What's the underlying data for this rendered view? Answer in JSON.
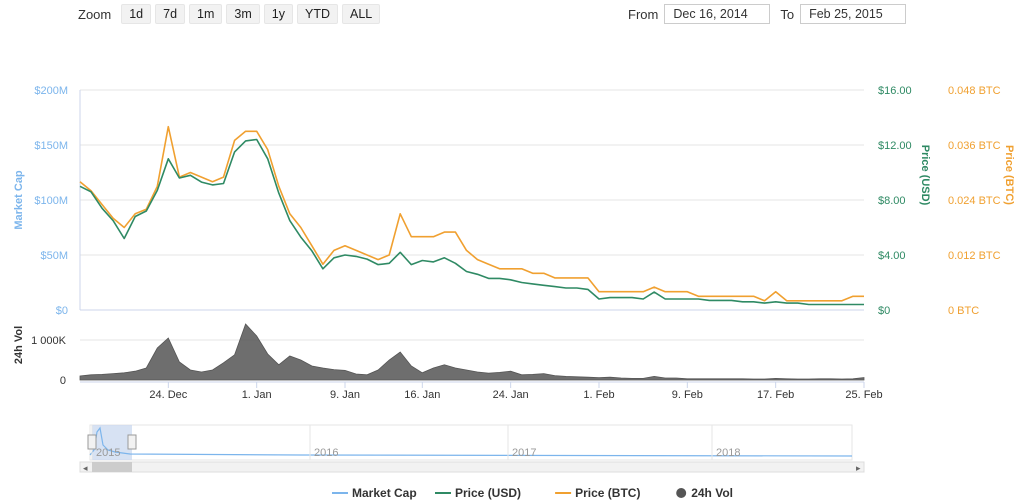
{
  "zoom": {
    "label": "Zoom",
    "buttons": [
      "1d",
      "7d",
      "1m",
      "3m",
      "1y",
      "YTD",
      "ALL"
    ]
  },
  "range": {
    "from_label": "From",
    "from_value": "Dec 16, 2014",
    "to_label": "To",
    "to_value": "Feb 25, 2015"
  },
  "colors": {
    "market_cap": "#7cb5ec",
    "price_usd": "#2f8a64",
    "price_btc": "#f0a030",
    "volume": "#555555",
    "navigator_fill": "#c6d6ee"
  },
  "chart_data": {
    "type": "line",
    "x_type": "date",
    "x_range": [
      "2014-12-16",
      "2015-02-25"
    ],
    "x_ticks": [
      "24. Dec",
      "1. Jan",
      "9. Jan",
      "16. Jan",
      "24. Jan",
      "1. Feb",
      "9. Feb",
      "17. Feb",
      "25. Feb"
    ],
    "x_tick_dates": [
      "2014-12-24",
      "2015-01-01",
      "2015-01-09",
      "2015-01-16",
      "2015-01-24",
      "2015-02-01",
      "2015-02-09",
      "2015-02-17",
      "2015-02-25"
    ],
    "axes": {
      "market_cap": {
        "label": "Market Cap",
        "ticks": [
          "$0",
          "$50M",
          "$100M",
          "$150M",
          "$200M"
        ],
        "range": [
          0,
          200000000
        ]
      },
      "price_usd": {
        "label": "Price (USD)",
        "ticks": [
          "$0",
          "$4.00",
          "$8.00",
          "$12.00",
          "$16.00"
        ],
        "range": [
          0,
          16
        ]
      },
      "price_btc": {
        "label": "Price (BTC)",
        "ticks": [
          "0 BTC",
          "0.012 BTC",
          "0.024 BTC",
          "0.036 BTC",
          "0.048 BTC"
        ],
        "range": [
          0,
          0.048
        ]
      },
      "volume": {
        "label": "24h Vol",
        "ticks": [
          "0",
          "1 000K"
        ],
        "range": [
          0,
          1500000
        ]
      }
    },
    "series": [
      {
        "name": "Price (USD)",
        "axis": "price_usd",
        "color": "#2f8a64",
        "points": [
          [
            "2014-12-16",
            9.0
          ],
          [
            "2014-12-17",
            8.6
          ],
          [
            "2014-12-18",
            7.4
          ],
          [
            "2014-12-19",
            6.5
          ],
          [
            "2014-12-20",
            5.2
          ],
          [
            "2014-12-21",
            6.8
          ],
          [
            "2014-12-22",
            7.2
          ],
          [
            "2014-12-23",
            8.7
          ],
          [
            "2014-12-24",
            11.0
          ],
          [
            "2014-12-25",
            9.6
          ],
          [
            "2014-12-26",
            9.8
          ],
          [
            "2014-12-27",
            9.3
          ],
          [
            "2014-12-28",
            9.1
          ],
          [
            "2014-12-29",
            9.2
          ],
          [
            "2014-12-30",
            11.5
          ],
          [
            "2014-12-31",
            12.3
          ],
          [
            "2015-01-01",
            12.4
          ],
          [
            "2015-01-02",
            11.0
          ],
          [
            "2015-01-03",
            8.5
          ],
          [
            "2015-01-04",
            6.5
          ],
          [
            "2015-01-05",
            5.3
          ],
          [
            "2015-01-06",
            4.3
          ],
          [
            "2015-01-07",
            3.0
          ],
          [
            "2015-01-08",
            3.8
          ],
          [
            "2015-01-09",
            4.0
          ],
          [
            "2015-01-10",
            3.9
          ],
          [
            "2015-01-11",
            3.7
          ],
          [
            "2015-01-12",
            3.3
          ],
          [
            "2015-01-13",
            3.4
          ],
          [
            "2015-01-14",
            4.2
          ],
          [
            "2015-01-15",
            3.3
          ],
          [
            "2015-01-16",
            3.6
          ],
          [
            "2015-01-17",
            3.5
          ],
          [
            "2015-01-18",
            3.8
          ],
          [
            "2015-01-19",
            3.4
          ],
          [
            "2015-01-20",
            2.8
          ],
          [
            "2015-01-21",
            2.6
          ],
          [
            "2015-01-22",
            2.3
          ],
          [
            "2015-01-23",
            2.3
          ],
          [
            "2015-01-24",
            2.2
          ],
          [
            "2015-01-25",
            2.0
          ],
          [
            "2015-01-26",
            1.9
          ],
          [
            "2015-01-27",
            1.8
          ],
          [
            "2015-01-28",
            1.7
          ],
          [
            "2015-01-29",
            1.6
          ],
          [
            "2015-01-30",
            1.6
          ],
          [
            "2015-01-31",
            1.5
          ],
          [
            "2015-02-01",
            0.8
          ],
          [
            "2015-02-02",
            0.9
          ],
          [
            "2015-02-03",
            0.9
          ],
          [
            "2015-02-04",
            0.9
          ],
          [
            "2015-02-05",
            0.8
          ],
          [
            "2015-02-06",
            1.3
          ],
          [
            "2015-02-07",
            0.8
          ],
          [
            "2015-02-08",
            0.8
          ],
          [
            "2015-02-09",
            0.8
          ],
          [
            "2015-02-10",
            0.8
          ],
          [
            "2015-02-11",
            0.7
          ],
          [
            "2015-02-12",
            0.7
          ],
          [
            "2015-02-13",
            0.7
          ],
          [
            "2015-02-14",
            0.6
          ],
          [
            "2015-02-15",
            0.6
          ],
          [
            "2015-02-16",
            0.5
          ],
          [
            "2015-02-17",
            0.6
          ],
          [
            "2015-02-18",
            0.5
          ],
          [
            "2015-02-19",
            0.5
          ],
          [
            "2015-02-20",
            0.4
          ],
          [
            "2015-02-21",
            0.4
          ],
          [
            "2015-02-22",
            0.4
          ],
          [
            "2015-02-23",
            0.4
          ],
          [
            "2015-02-24",
            0.4
          ],
          [
            "2015-02-25",
            0.4
          ]
        ]
      },
      {
        "name": "Price (BTC)",
        "axis": "price_btc",
        "color": "#f0a030",
        "points": [
          [
            "2014-12-16",
            0.028
          ],
          [
            "2014-12-17",
            0.026
          ],
          [
            "2014-12-18",
            0.023
          ],
          [
            "2014-12-19",
            0.02
          ],
          [
            "2014-12-20",
            0.018
          ],
          [
            "2014-12-21",
            0.021
          ],
          [
            "2014-12-22",
            0.022
          ],
          [
            "2014-12-23",
            0.027
          ],
          [
            "2014-12-24",
            0.04
          ],
          [
            "2014-12-25",
            0.029
          ],
          [
            "2014-12-26",
            0.03
          ],
          [
            "2014-12-27",
            0.029
          ],
          [
            "2014-12-28",
            0.028
          ],
          [
            "2014-12-29",
            0.029
          ],
          [
            "2014-12-30",
            0.037
          ],
          [
            "2014-12-31",
            0.039
          ],
          [
            "2015-01-01",
            0.039
          ],
          [
            "2015-01-02",
            0.035
          ],
          [
            "2015-01-03",
            0.027
          ],
          [
            "2015-01-04",
            0.021
          ],
          [
            "2015-01-05",
            0.018
          ],
          [
            "2015-01-06",
            0.014
          ],
          [
            "2015-01-07",
            0.01
          ],
          [
            "2015-01-08",
            0.013
          ],
          [
            "2015-01-09",
            0.014
          ],
          [
            "2015-01-10",
            0.013
          ],
          [
            "2015-01-11",
            0.012
          ],
          [
            "2015-01-12",
            0.011
          ],
          [
            "2015-01-13",
            0.012
          ],
          [
            "2015-01-14",
            0.021
          ],
          [
            "2015-01-15",
            0.016
          ],
          [
            "2015-01-16",
            0.016
          ],
          [
            "2015-01-17",
            0.016
          ],
          [
            "2015-01-18",
            0.017
          ],
          [
            "2015-01-19",
            0.017
          ],
          [
            "2015-01-20",
            0.013
          ],
          [
            "2015-01-21",
            0.011
          ],
          [
            "2015-01-22",
            0.01
          ],
          [
            "2015-01-23",
            0.009
          ],
          [
            "2015-01-24",
            0.009
          ],
          [
            "2015-01-25",
            0.009
          ],
          [
            "2015-01-26",
            0.008
          ],
          [
            "2015-01-27",
            0.008
          ],
          [
            "2015-01-28",
            0.007
          ],
          [
            "2015-01-29",
            0.007
          ],
          [
            "2015-01-30",
            0.007
          ],
          [
            "2015-01-31",
            0.007
          ],
          [
            "2015-02-01",
            0.004
          ],
          [
            "2015-02-02",
            0.004
          ],
          [
            "2015-02-03",
            0.004
          ],
          [
            "2015-02-04",
            0.004
          ],
          [
            "2015-02-05",
            0.004
          ],
          [
            "2015-02-06",
            0.005
          ],
          [
            "2015-02-07",
            0.004
          ],
          [
            "2015-02-08",
            0.004
          ],
          [
            "2015-02-09",
            0.004
          ],
          [
            "2015-02-10",
            0.003
          ],
          [
            "2015-02-11",
            0.003
          ],
          [
            "2015-02-12",
            0.003
          ],
          [
            "2015-02-13",
            0.003
          ],
          [
            "2015-02-14",
            0.003
          ],
          [
            "2015-02-15",
            0.003
          ],
          [
            "2015-02-16",
            0.002
          ],
          [
            "2015-02-17",
            0.004
          ],
          [
            "2015-02-18",
            0.002
          ],
          [
            "2015-02-19",
            0.002
          ],
          [
            "2015-02-20",
            0.002
          ],
          [
            "2015-02-21",
            0.002
          ],
          [
            "2015-02-22",
            0.002
          ],
          [
            "2015-02-23",
            0.002
          ],
          [
            "2015-02-24",
            0.003
          ],
          [
            "2015-02-25",
            0.003
          ]
        ]
      },
      {
        "name": "24h Vol",
        "axis": "volume",
        "type": "area",
        "color": "#555555",
        "points": [
          [
            "2014-12-16",
            100000
          ],
          [
            "2014-12-17",
            130000
          ],
          [
            "2014-12-18",
            140000
          ],
          [
            "2014-12-19",
            160000
          ],
          [
            "2014-12-20",
            180000
          ],
          [
            "2014-12-21",
            220000
          ],
          [
            "2014-12-22",
            300000
          ],
          [
            "2014-12-23",
            800000
          ],
          [
            "2014-12-24",
            1050000
          ],
          [
            "2014-12-25",
            450000
          ],
          [
            "2014-12-26",
            250000
          ],
          [
            "2014-12-27",
            200000
          ],
          [
            "2014-12-28",
            250000
          ],
          [
            "2014-12-29",
            430000
          ],
          [
            "2014-12-30",
            630000
          ],
          [
            "2014-12-31",
            1400000
          ],
          [
            "2015-01-01",
            1100000
          ],
          [
            "2015-01-02",
            650000
          ],
          [
            "2015-01-03",
            380000
          ],
          [
            "2015-01-04",
            600000
          ],
          [
            "2015-01-05",
            500000
          ],
          [
            "2015-01-06",
            350000
          ],
          [
            "2015-01-07",
            300000
          ],
          [
            "2015-01-08",
            260000
          ],
          [
            "2015-01-09",
            240000
          ],
          [
            "2015-01-10",
            150000
          ],
          [
            "2015-01-11",
            130000
          ],
          [
            "2015-01-12",
            250000
          ],
          [
            "2015-01-13",
            500000
          ],
          [
            "2015-01-14",
            700000
          ],
          [
            "2015-01-15",
            350000
          ],
          [
            "2015-01-16",
            180000
          ],
          [
            "2015-01-17",
            300000
          ],
          [
            "2015-01-18",
            380000
          ],
          [
            "2015-01-19",
            300000
          ],
          [
            "2015-01-20",
            250000
          ],
          [
            "2015-01-21",
            200000
          ],
          [
            "2015-01-22",
            170000
          ],
          [
            "2015-01-23",
            190000
          ],
          [
            "2015-01-24",
            220000
          ],
          [
            "2015-01-25",
            130000
          ],
          [
            "2015-01-26",
            140000
          ],
          [
            "2015-01-27",
            160000
          ],
          [
            "2015-01-28",
            110000
          ],
          [
            "2015-01-29",
            90000
          ],
          [
            "2015-01-30",
            80000
          ],
          [
            "2015-01-31",
            70000
          ],
          [
            "2015-02-01",
            60000
          ],
          [
            "2015-02-02",
            70000
          ],
          [
            "2015-02-03",
            50000
          ],
          [
            "2015-02-04",
            40000
          ],
          [
            "2015-02-05",
            40000
          ],
          [
            "2015-02-06",
            90000
          ],
          [
            "2015-02-07",
            50000
          ],
          [
            "2015-02-08",
            50000
          ],
          [
            "2015-02-09",
            30000
          ],
          [
            "2015-02-10",
            30000
          ],
          [
            "2015-02-11",
            30000
          ],
          [
            "2015-02-12",
            30000
          ],
          [
            "2015-02-13",
            30000
          ],
          [
            "2015-02-14",
            30000
          ],
          [
            "2015-02-15",
            25000
          ],
          [
            "2015-02-16",
            25000
          ],
          [
            "2015-02-17",
            40000
          ],
          [
            "2015-02-18",
            30000
          ],
          [
            "2015-02-19",
            25000
          ],
          [
            "2015-02-20",
            25000
          ],
          [
            "2015-02-21",
            30000
          ],
          [
            "2015-02-22",
            30000
          ],
          [
            "2015-02-23",
            25000
          ],
          [
            "2015-02-24",
            30000
          ],
          [
            "2015-02-25",
            60000
          ]
        ]
      }
    ],
    "navigator": {
      "labels": [
        "2015",
        "2016",
        "2017",
        "2018"
      ]
    },
    "legend": {
      "placement": "bottom-center",
      "items": [
        {
          "name": "Market Cap",
          "color": "#7cb5ec"
        },
        {
          "name": "Price (USD)",
          "color": "#2f8a64"
        },
        {
          "name": "Price (BTC)",
          "color": "#f0a030"
        },
        {
          "name": "24h Vol",
          "color": "#555555"
        }
      ]
    }
  }
}
